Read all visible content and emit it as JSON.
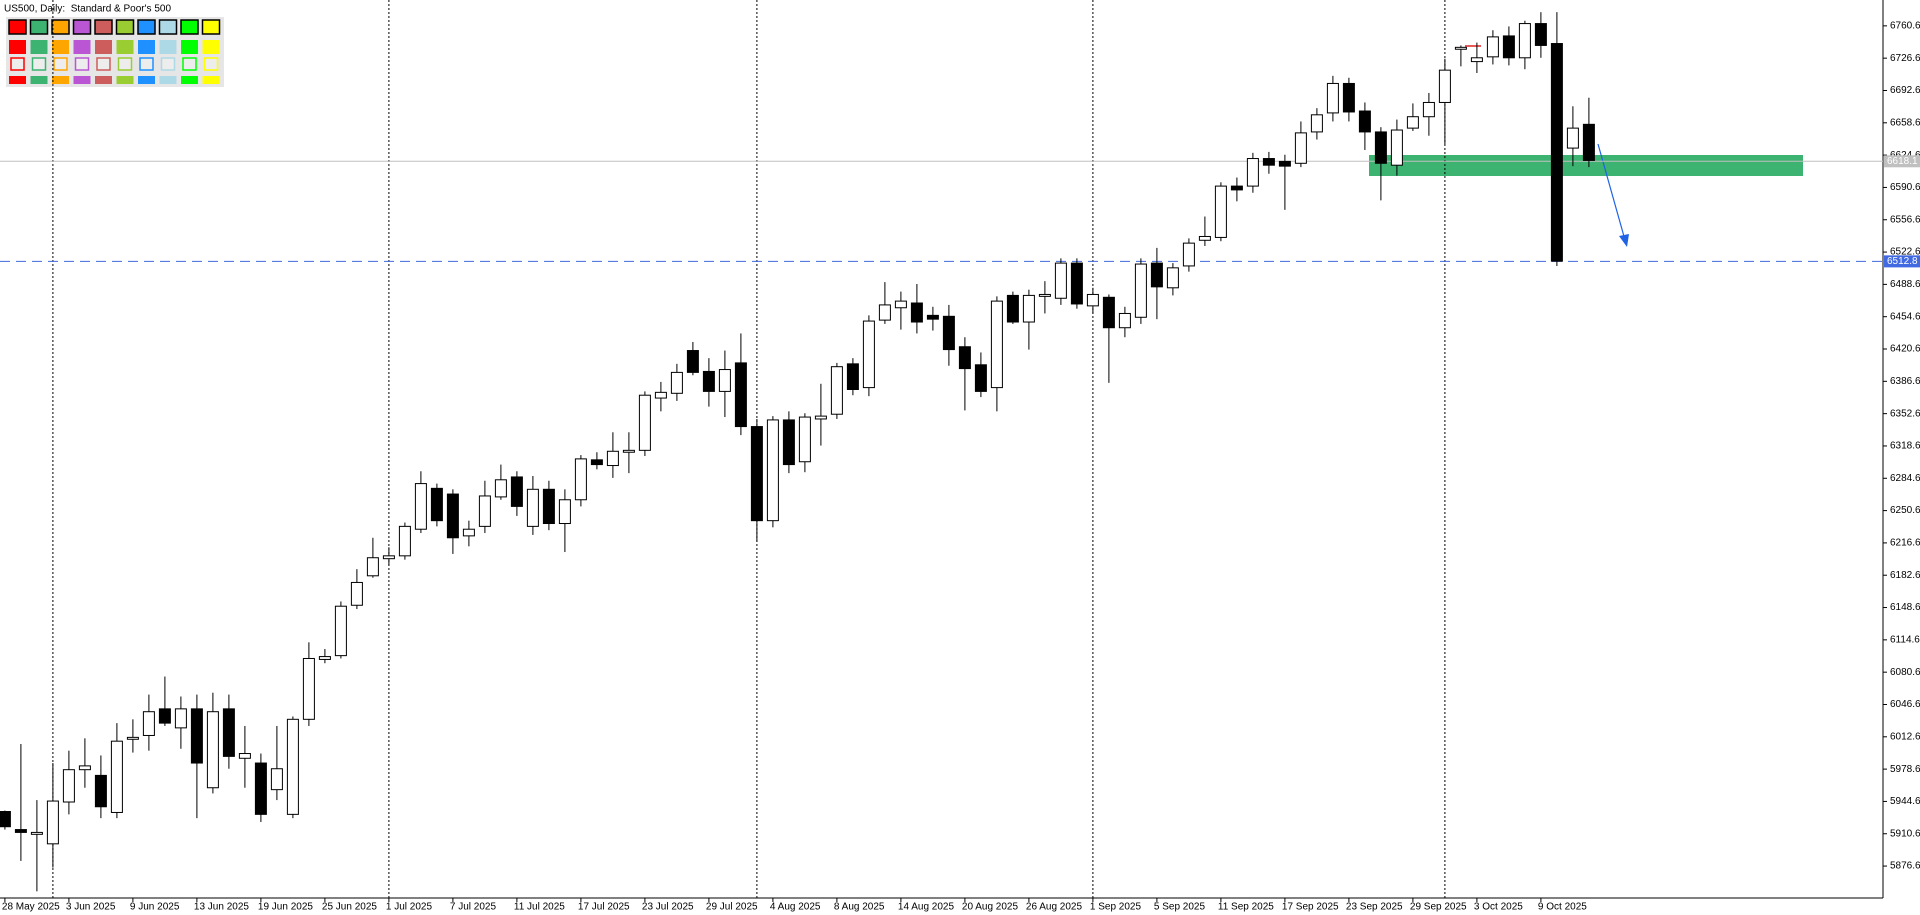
{
  "chart_data": {
    "type": "candlestick",
    "title": "US500, Daily:  Standard & Poor's 500",
    "categories": [
      "28 May 2025",
      null,
      null,
      null,
      "3 Jun 2025",
      null,
      null,
      null,
      "9 Jun 2025",
      null,
      null,
      null,
      "13 Jun 2025",
      null,
      null,
      null,
      "19 Jun 2025",
      null,
      null,
      null,
      "25 Jun 2025",
      null,
      null,
      null,
      "1 Jul 2025",
      null,
      null,
      null,
      "7 Jul 2025",
      null,
      null,
      null,
      "11 Jul 2025",
      null,
      null,
      null,
      "17 Jul 2025",
      null,
      null,
      null,
      "23 Jul 2025",
      null,
      null,
      null,
      "29 Jul 2025",
      null,
      null,
      null,
      "4 Aug 2025",
      null,
      null,
      null,
      "8 Aug 2025",
      null,
      null,
      null,
      "14 Aug 2025",
      null,
      null,
      null,
      "20 Aug 2025",
      null,
      null,
      null,
      "26 Aug 2025",
      null,
      null,
      null,
      "1 Sep 2025",
      null,
      null,
      null,
      "5 Sep 2025",
      null,
      null,
      null,
      "11 Sep 2025",
      null,
      null,
      null,
      "17 Sep 2025",
      null,
      null,
      null,
      "23 Sep 2025",
      null,
      null,
      null,
      "29 Sep 2025",
      null,
      null,
      null,
      "3 Oct 2025",
      null,
      null,
      null,
      "9 Oct 2025",
      null,
      null,
      null
    ],
    "open": [
      5934,
      5915,
      5910,
      5900,
      5944,
      5978,
      5972,
      5933,
      6010,
      6014,
      6042,
      6022,
      6042,
      5959,
      6042,
      5990,
      5985,
      5957,
      5931,
      6031,
      6094,
      6098,
      6151,
      6182,
      6200,
      6203,
      6231,
      6274,
      6268,
      6224,
      6234,
      6265,
      6286,
      6234,
      6273,
      6237,
      6262,
      6304,
      6298,
      6312,
      6314,
      6369,
      6374,
      6419,
      6397,
      6376,
      6406,
      6339,
      6240,
      6346,
      6302,
      6347,
      6352,
      6405,
      6380,
      6451,
      6464,
      6469,
      6456,
      6455,
      6423,
      6404,
      6380,
      6477,
      6449,
      6476,
      6474,
      6511,
      6466,
      6475,
      6443,
      6454,
      6511,
      6485,
      6508,
      6535,
      6538,
      6592,
      6592,
      6621,
      6618,
      6616,
      6649,
      6669,
      6700,
      6671,
      6649,
      6614,
      6653,
      6665,
      6680,
      6736,
      6723,
      6728,
      6750,
      6727,
      6763,
      6742,
      6632,
      6657
    ],
    "high": [
      5935,
      6005,
      5946,
      5985,
      5998,
      6011,
      5993,
      6027,
      6031,
      6057,
      6076,
      6055,
      6057,
      6059,
      6057,
      6024,
      5995,
      6024,
      6034,
      6112,
      6105,
      6155,
      6189,
      6222,
      6212,
      6238,
      6292,
      6279,
      6273,
      6240,
      6282,
      6299,
      6292,
      6287,
      6282,
      6273,
      6309,
      6312,
      6333,
      6333,
      6376,
      6386,
      6405,
      6428,
      6411,
      6419,
      6437,
      6347,
      6350,
      6355,
      6353,
      6384,
      6406,
      6411,
      6456,
      6491,
      6481,
      6489,
      6465,
      6467,
      6433,
      6417,
      6476,
      6481,
      6483,
      6492,
      6516,
      6516,
      6485,
      6478,
      6465,
      6516,
      6527,
      6511,
      6537,
      6560,
      6596,
      6601,
      6627,
      6628,
      6625,
      6660,
      6674,
      6708,
      6706,
      6680,
      6654,
      6662,
      6679,
      6690,
      6726,
      6740,
      6743,
      6756,
      6760,
      6766,
      6775,
      6775,
      6676,
      6685
    ],
    "low": [
      5915,
      5882,
      5850,
      5875,
      5931,
      5959,
      5927,
      5927,
      5996,
      5998,
      6024,
      6000,
      5927,
      5953,
      5979,
      5959,
      5923,
      5946,
      5927,
      6024,
      6090,
      6095,
      6147,
      6180,
      6193,
      6199,
      6227,
      6234,
      6205,
      6213,
      6227,
      6262,
      6245,
      6225,
      6230,
      6207,
      6255,
      6294,
      6285,
      6290,
      6308,
      6355,
      6366,
      6393,
      6360,
      6349,
      6330,
      6218,
      6233,
      6290,
      6291,
      6319,
      6347,
      6372,
      6371,
      6447,
      6441,
      6437,
      6440,
      6403,
      6356,
      6370,
      6355,
      6447,
      6420,
      6458,
      6467,
      6463,
      6458,
      6385,
      6433,
      6447,
      6452,
      6477,
      6502,
      6529,
      6534,
      6576,
      6585,
      6605,
      6567,
      6612,
      6641,
      6660,
      6660,
      6630,
      6577,
      6603,
      6650,
      6645,
      6636,
      6718,
      6711,
      6720,
      6719,
      6715,
      6727,
      6508,
      6613,
      6612
    ],
    "close": [
      5918,
      5912,
      5912,
      5945,
      5978,
      5982,
      5939,
      6008,
      6012,
      6039,
      6027,
      6042,
      5985,
      6039,
      5992,
      5995,
      5931,
      5979,
      6031,
      6095,
      6097,
      6150,
      6175,
      6201,
      6203,
      6234,
      6279,
      6240,
      6222,
      6231,
      6266,
      6283,
      6255,
      6273,
      6237,
      6262,
      6305,
      6299,
      6313,
      6314,
      6372,
      6375,
      6396,
      6396,
      6376,
      6399,
      6339,
      6240,
      6346,
      6299,
      6349,
      6350,
      6402,
      6378,
      6450,
      6467,
      6471,
      6449,
      6452,
      6420,
      6400,
      6376,
      6471,
      6449,
      6477,
      6478,
      6511,
      6468,
      6478,
      6443,
      6458,
      6510,
      6486,
      6506,
      6532,
      6539,
      6592,
      6588,
      6621,
      6614,
      6613,
      6648,
      6667,
      6700,
      6670,
      6649,
      6616,
      6651,
      6665,
      6680,
      6714,
      6738,
      6727,
      6749,
      6727,
      6763,
      6740,
      6513,
      6653,
      6619
    ],
    "up_color": "#ffffff",
    "down_color": "#000000",
    "ylim": [
      5843.0,
      6787.8
    ],
    "yticks": [
      5876.6,
      5910.6,
      5944.6,
      5978.6,
      6012.6,
      6046.6,
      6080.6,
      6114.6,
      6148.6,
      6182.6,
      6216.6,
      6250.6,
      6284.6,
      6318.6,
      6352.6,
      6386.6,
      6420.6,
      6454.6,
      6488.6,
      6522.6,
      6556.6,
      6590.6,
      6624.6,
      6658.6,
      6692.6,
      6726.6,
      6760.6
    ],
    "grid": false,
    "price_lines": [
      {
        "value": 6618.1,
        "color": "#c0c0c0",
        "dashed": false
      },
      {
        "value": 6512.8,
        "color": "#4169e1",
        "dashed": true
      }
    ]
  }
}
